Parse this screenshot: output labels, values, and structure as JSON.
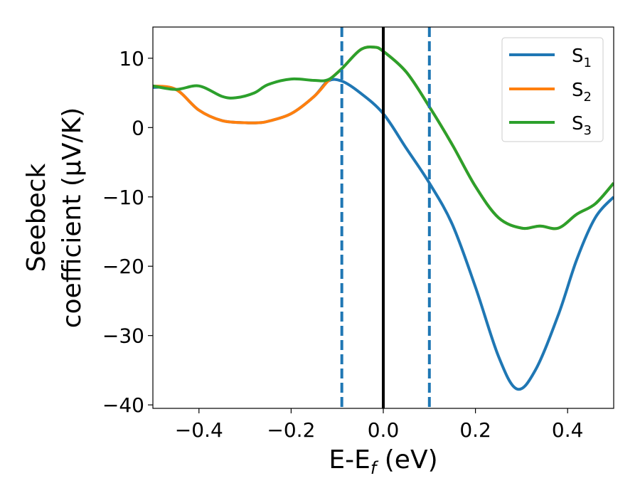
{
  "chart_data": {
    "type": "line",
    "title": "",
    "xlabel": {
      "main": "E-E",
      "sub": "f",
      "unit": " (eV)"
    },
    "ylabel": {
      "line1": "Seebeck",
      "line2": "coefficient  (μV/K)"
    },
    "xlim": [
      -0.5,
      0.5
    ],
    "ylim": [
      -40.5,
      14.5
    ],
    "xticks": [
      -0.4,
      -0.2,
      0.0,
      0.2,
      0.4
    ],
    "xtick_labels": [
      "−0.4",
      "−0.2",
      "0.0",
      "0.2",
      "0.4"
    ],
    "yticks": [
      -40,
      -30,
      -20,
      -10,
      0,
      10
    ],
    "ytick_labels": [
      "−40",
      "−30",
      "−20",
      "−10",
      "0",
      "10"
    ],
    "grid": false,
    "legend_position": "top-right",
    "vlines": [
      {
        "x": -0.09,
        "style": "dashed",
        "color": "#1f77b4"
      },
      {
        "x": 0.0,
        "style": "solid",
        "color": "#000000"
      },
      {
        "x": 0.1,
        "style": "dashed",
        "color": "#1f77b4"
      }
    ],
    "series": [
      {
        "name": "S",
        "sub": "1",
        "color": "#1f77b4",
        "x": [
          -0.5,
          -0.45,
          -0.4,
          -0.35,
          -0.3,
          -0.27,
          -0.25,
          -0.2,
          -0.15,
          -0.12,
          -0.09,
          -0.05,
          0.0,
          0.05,
          0.1,
          0.15,
          0.2,
          0.25,
          0.29,
          0.33,
          0.38,
          0.42,
          0.46,
          0.5
        ],
        "y": [
          5.8,
          5.5,
          2.5,
          1.0,
          0.7,
          0.7,
          0.9,
          2.0,
          4.5,
          6.7,
          6.7,
          5.0,
          2.0,
          -3.0,
          -8.0,
          -14.0,
          -23.0,
          -33.0,
          -37.7,
          -35.0,
          -27.0,
          -19.0,
          -13.0,
          -10.0
        ]
      },
      {
        "name": "S",
        "sub": "2",
        "color": "#ff7f0e",
        "x": [
          -0.5,
          -0.45,
          -0.4,
          -0.35,
          -0.3,
          -0.27,
          -0.25,
          -0.2,
          -0.15,
          -0.12,
          -0.09,
          -0.05,
          -0.02,
          0.0,
          0.05,
          0.1,
          0.15,
          0.2,
          0.25,
          0.3,
          0.34,
          0.38,
          0.42,
          0.46,
          0.5
        ],
        "y": [
          6.0,
          5.5,
          2.5,
          1.0,
          0.7,
          0.7,
          0.9,
          2.0,
          4.5,
          6.7,
          8.5,
          11.2,
          11.6,
          11.0,
          8.0,
          3.0,
          -2.5,
          -8.5,
          -13.0,
          -14.5,
          -14.2,
          -14.5,
          -12.5,
          -11.0,
          -8.0
        ]
      },
      {
        "name": "S",
        "sub": "3",
        "color": "#2ca02c",
        "x": [
          -0.5,
          -0.45,
          -0.4,
          -0.35,
          -0.32,
          -0.28,
          -0.25,
          -0.2,
          -0.15,
          -0.12,
          -0.09,
          -0.05,
          -0.02,
          0.0,
          0.05,
          0.1,
          0.15,
          0.2,
          0.25,
          0.3,
          0.34,
          0.38,
          0.42,
          0.46,
          0.5
        ],
        "y": [
          6.0,
          5.5,
          6.0,
          4.5,
          4.3,
          5.0,
          6.2,
          7.0,
          6.8,
          6.9,
          8.5,
          11.2,
          11.6,
          11.0,
          8.0,
          3.0,
          -2.5,
          -8.5,
          -13.0,
          -14.5,
          -14.2,
          -14.5,
          -12.5,
          -11.0,
          -8.0
        ]
      }
    ]
  }
}
